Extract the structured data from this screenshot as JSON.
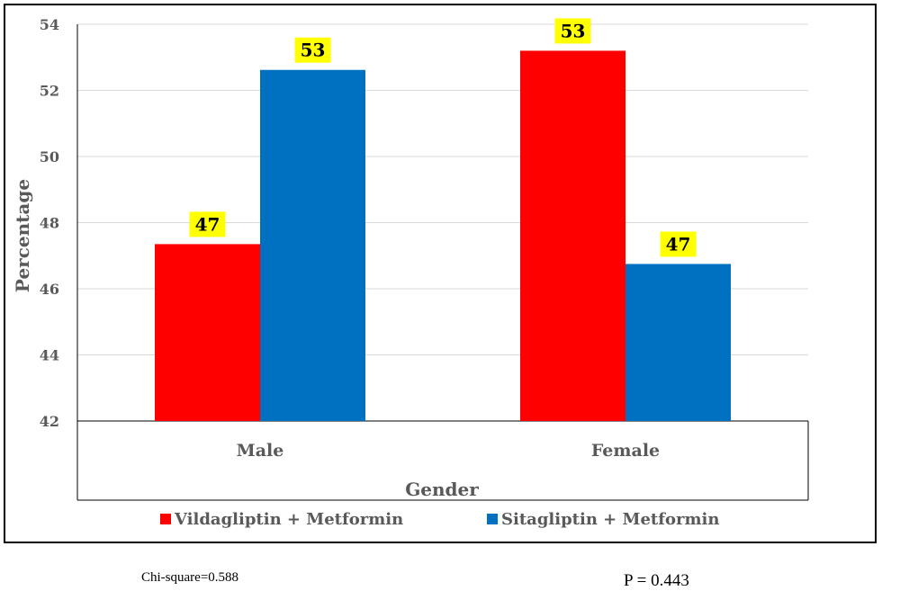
{
  "chart_data": {
    "type": "bar",
    "xlabel": "Gender",
    "ylabel": "Percentage",
    "ylim": [
      42,
      54
    ],
    "yticks": [
      42,
      44,
      46,
      48,
      50,
      52,
      54
    ],
    "ytick_labels": [
      "42",
      "44",
      "46",
      "48",
      "50",
      "52",
      "54"
    ],
    "grid": true,
    "legend_position": "bottom",
    "categories": [
      "Male",
      "Female"
    ],
    "series": [
      {
        "name": "Vildagliptin + Metformin",
        "color": "#ff0000",
        "values": [
          47.35,
          53.2
        ],
        "labels": [
          "47",
          "53"
        ]
      },
      {
        "name": "Sitagliptin + Metformin",
        "color": "#0070c0",
        "values": [
          52.62,
          46.75
        ],
        "labels": [
          "53",
          "47"
        ]
      }
    ],
    "data_label_background": "#ffff00"
  },
  "footer": {
    "chi_square": "Chi-square=0.588",
    "p_value": "P = 0.443"
  }
}
